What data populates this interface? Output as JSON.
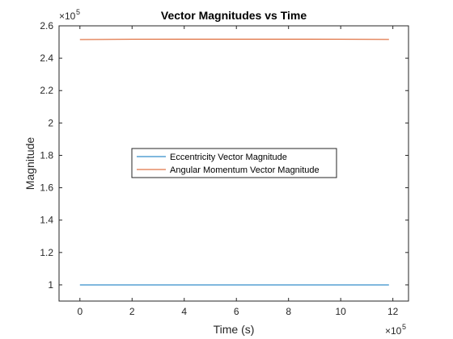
{
  "chart_data": {
    "type": "line",
    "title": "Vector Magnitudes vs Time",
    "xlabel": "Time (s)",
    "ylabel": "Magnitude",
    "x_exponent": {
      "base": "×10",
      "power": "5"
    },
    "y_exponent": {
      "base": "×10",
      "power": "5"
    },
    "xlim": [
      -0.8,
      12.6
    ],
    "ylim": [
      0.9,
      2.6
    ],
    "x_ticks": [
      0,
      2,
      4,
      6,
      8,
      10,
      12
    ],
    "y_ticks": [
      1,
      1.2,
      1.4,
      1.6,
      1.8,
      2,
      2.2,
      2.4,
      2.6
    ],
    "x_tick_labels": [
      "0",
      "2",
      "4",
      "6",
      "8",
      "10",
      "12"
    ],
    "y_tick_labels": [
      "1",
      "1.2",
      "1.4",
      "1.6",
      "1.8",
      "2",
      "2.2",
      "2.4",
      "2.6"
    ],
    "grid": false,
    "legend_position": "center",
    "series": [
      {
        "name": "Eccentricity Vector Magnitude",
        "color": "#0072BD",
        "x": [
          0,
          2,
          4,
          6,
          8,
          10,
          11.85
        ],
        "y": [
          1.0,
          1.0,
          1.0,
          1.0,
          1.0,
          1.0,
          1.0
        ]
      },
      {
        "name": "Angular Momentum Vector Magnitude",
        "color": "#D95319",
        "x": [
          0,
          2,
          4,
          6,
          8,
          10,
          11.85
        ],
        "y": [
          2.515,
          2.517,
          2.518,
          2.518,
          2.518,
          2.517,
          2.516
        ]
      }
    ]
  }
}
